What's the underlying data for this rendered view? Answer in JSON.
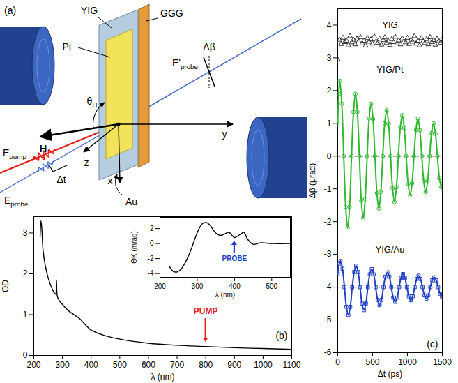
{
  "diagram": {
    "panel": "(a)",
    "labels": {
      "yig": "YIG",
      "ggg": "GGG",
      "pt": "Pt",
      "au": "Au",
      "delta_beta": "Δβ",
      "probe_out": {
        "text": "E'",
        "sub": "probe"
      },
      "theta_h": {
        "text": "θ",
        "sub": "H"
      },
      "field": "H",
      "axis_x": "x",
      "axis_y": "y",
      "axis_z": "z",
      "pump": {
        "text": "E",
        "sub": "pump"
      },
      "probe_in": {
        "text": "E",
        "sub": "probe"
      },
      "delay": "Δt"
    }
  },
  "chart_data": [
    {
      "type": "line",
      "panel": "(b)",
      "x_label": "λ (nm)",
      "y_label": "OD",
      "color": "#000000",
      "x": [
        222,
        225,
        228,
        232,
        240,
        250,
        260,
        270,
        276,
        279,
        282,
        288,
        300,
        320,
        340,
        360,
        380,
        400,
        450,
        500,
        600,
        700,
        800,
        900,
        1000,
        1100
      ],
      "values": [
        2.9,
        3.3,
        3.1,
        2.6,
        2.2,
        1.9,
        1.7,
        1.55,
        1.5,
        1.85,
        1.45,
        1.35,
        1.25,
        1.1,
        1.0,
        0.9,
        0.75,
        0.62,
        0.48,
        0.4,
        0.3,
        0.25,
        0.22,
        0.19,
        0.17,
        0.15
      ],
      "xlim": [
        200,
        1100
      ],
      "xticks": [
        200,
        300,
        400,
        500,
        600,
        700,
        800,
        900,
        1000,
        1100
      ],
      "ylim": [
        0,
        3.4
      ],
      "yticks": [
        0,
        1,
        2,
        3
      ],
      "annotations": [
        {
          "text": "PUMP",
          "x": 800,
          "color": "#e3231b"
        }
      ],
      "inset": {
        "type": "line",
        "x_label": "λ (nm)",
        "y_label": "ΘK (mrad)",
        "color": "#000000",
        "x": [
          225,
          235,
          245,
          255,
          265,
          275,
          285,
          295,
          305,
          315,
          325,
          335,
          345,
          355,
          365,
          375,
          385,
          395,
          400,
          415,
          425,
          435,
          450,
          470,
          500,
          550
        ],
        "values": [
          -3.0,
          -3.7,
          -3.8,
          -3.5,
          -2.8,
          -1.8,
          -0.6,
          0.8,
          2.0,
          2.7,
          2.8,
          2.4,
          1.7,
          1.2,
          1.1,
          1.3,
          1.5,
          1.0,
          0.8,
          1.2,
          1.5,
          0.6,
          -0.1,
          0.1,
          0,
          0
        ],
        "xlim": [
          200,
          550
        ],
        "xticks": [
          200,
          300,
          400,
          500
        ],
        "ylim": [
          -4.5,
          3.5
        ],
        "yticks": [
          -4,
          -2,
          0,
          2
        ],
        "annotations": [
          {
            "text": "PROBE",
            "x": 400,
            "color": "#1f3fc4"
          }
        ]
      }
    },
    {
      "type": "line",
      "panel": "(c)",
      "x_label": "Δt (ps)",
      "y_label": "Δβ (μrad)",
      "xlim": [
        0,
        1500
      ],
      "xticks": [
        0,
        500,
        1000,
        1500
      ],
      "ylim": [
        -6,
        4.5
      ],
      "yticks": [
        -6,
        -5,
        -4,
        -3,
        -2,
        -1,
        0,
        1,
        2,
        3,
        4
      ],
      "reference_lines": {
        "values": [
          0,
          -4
        ],
        "line_style": "dashed"
      },
      "series": [
        {
          "name": "YIG",
          "type": "scatter",
          "marker": "triangle",
          "color": "#333333",
          "x": [
            0,
            25,
            50,
            75,
            100,
            125,
            150,
            175,
            200,
            225,
            250,
            275,
            300,
            325,
            350,
            375,
            400,
            425,
            450,
            475,
            500,
            525,
            550,
            575,
            600,
            625,
            650,
            675,
            700,
            725,
            750,
            775,
            800,
            825,
            850,
            875,
            900,
            925,
            950,
            975,
            1000,
            1025,
            1050,
            1075,
            1100,
            1125,
            1150,
            1175,
            1200,
            1225,
            1250,
            1275,
            1300,
            1325,
            1350,
            1375,
            1400,
            1425,
            1450,
            1475,
            1500
          ],
          "values": [
            2.95,
            3.55,
            3.42,
            3.61,
            3.48,
            3.52,
            3.38,
            3.66,
            3.47,
            3.55,
            3.41,
            3.58,
            3.5,
            3.63,
            3.44,
            3.52,
            3.37,
            3.6,
            3.49,
            3.56,
            3.43,
            3.65,
            3.5,
            3.46,
            3.58,
            3.4,
            3.54,
            3.62,
            3.45,
            3.51,
            3.39,
            3.57,
            3.48,
            3.64,
            3.44,
            3.53,
            3.41,
            3.59,
            3.5,
            3.47,
            3.61,
            3.42,
            3.55,
            3.49,
            3.66,
            3.43,
            3.52,
            3.38,
            3.6,
            3.5,
            3.45,
            3.57,
            3.41,
            3.63,
            3.48,
            3.54,
            3.4,
            3.58,
            3.51,
            3.46,
            3.56
          ]
        },
        {
          "name": "YIG/Pt",
          "type": "line",
          "marker": "circle",
          "color": "#2eb82e",
          "x": [
            0,
            14,
            30,
            58,
            86,
            114,
            142,
            170,
            198,
            226,
            254,
            282,
            310,
            338,
            366,
            394,
            422,
            450,
            478,
            506,
            534,
            562,
            590,
            618,
            646,
            674,
            702,
            730,
            758,
            786,
            814,
            842,
            870,
            898,
            926,
            954,
            982,
            1010,
            1038,
            1066,
            1094,
            1122,
            1150,
            1178,
            1206,
            1234,
            1262,
            1290,
            1318,
            1346,
            1374,
            1402,
            1430,
            1458,
            1486,
            1500
          ],
          "values": [
            1.0,
            1.9,
            2.3,
            1.6,
            0,
            -1.55,
            -2.2,
            -1.55,
            0,
            1.35,
            1.9,
            1.35,
            0,
            -1.35,
            -1.9,
            -1.3,
            0,
            1.15,
            1.6,
            1.13,
            0,
            -1.13,
            -1.6,
            -1.1,
            0,
            1.0,
            1.4,
            0.98,
            0,
            -0.98,
            -1.4,
            -0.95,
            0,
            0.88,
            1.25,
            0.86,
            0,
            -0.85,
            -1.2,
            -0.83,
            0,
            0.8,
            1.15,
            0.79,
            0,
            -0.77,
            -1.1,
            -0.75,
            0,
            0.7,
            1.0,
            0.68,
            0,
            -0.67,
            -0.95,
            -0.85
          ]
        },
        {
          "name": "YIG/Au",
          "type": "line",
          "marker": "square",
          "color": "#1f3fc4",
          "x": [
            0,
            20,
            40,
            68,
            96,
            124,
            152,
            180,
            208,
            236,
            264,
            292,
            320,
            348,
            376,
            404,
            432,
            460,
            488,
            516,
            544,
            572,
            600,
            628,
            656,
            684,
            712,
            740,
            768,
            796,
            824,
            852,
            880,
            908,
            936,
            964,
            992,
            1020,
            1048,
            1076,
            1104,
            1132,
            1160,
            1188,
            1216,
            1244,
            1272,
            1300,
            1328,
            1356,
            1384,
            1412,
            1440,
            1468,
            1496
          ],
          "values": [
            -3.6,
            -3.3,
            -3.2,
            -3.44,
            -4.0,
            -4.6,
            -4.85,
            -4.6,
            -4.0,
            -3.54,
            -3.35,
            -3.54,
            -4.0,
            -4.5,
            -4.7,
            -4.5,
            -4.0,
            -3.61,
            -3.45,
            -3.61,
            -4.0,
            -4.39,
            -4.55,
            -4.39,
            -4.0,
            -3.68,
            -3.55,
            -3.68,
            -4.0,
            -4.32,
            -4.45,
            -4.32,
            -4.0,
            -3.72,
            -3.6,
            -3.72,
            -4.0,
            -4.28,
            -4.4,
            -4.28,
            -4.0,
            -3.75,
            -3.65,
            -3.75,
            -4.0,
            -4.25,
            -4.35,
            -4.25,
            -4.0,
            -3.79,
            -3.7,
            -3.79,
            -4.0,
            -4.21,
            -4.3
          ]
        }
      ]
    }
  ]
}
